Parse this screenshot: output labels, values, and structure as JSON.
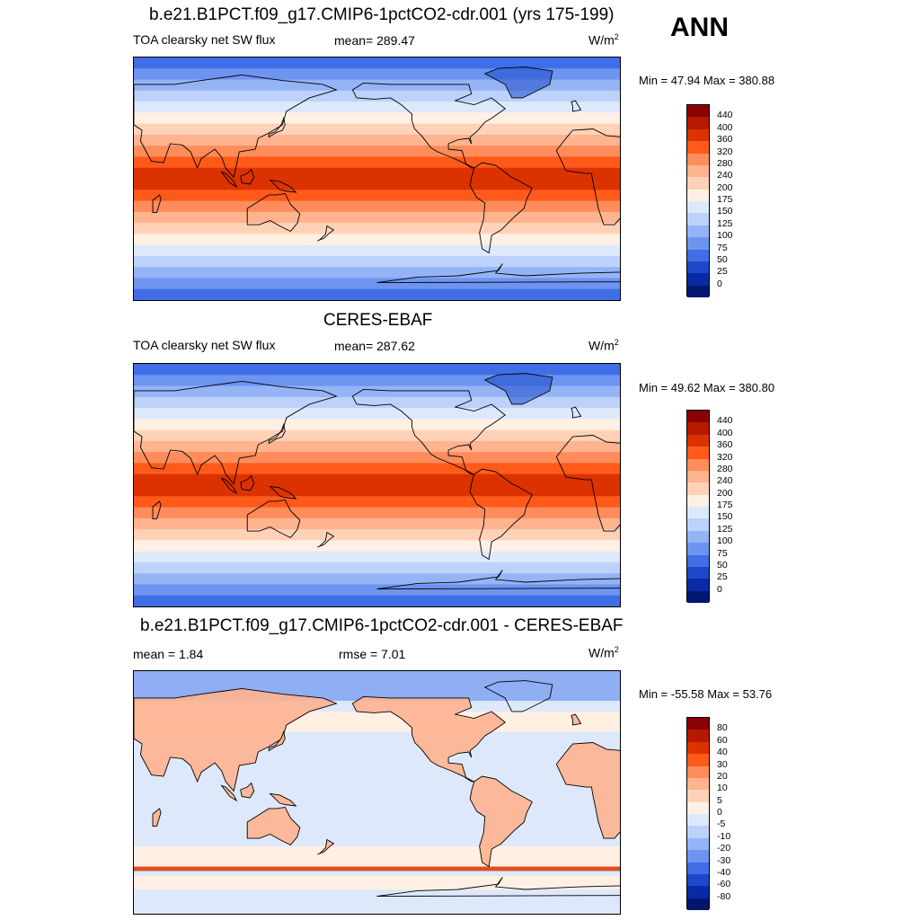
{
  "season": "ANN",
  "panels": [
    {
      "title": "b.e21.B1PCT.f09_g17.CMIP6-1pctCO2-cdr.001 (yrs 175-199)",
      "left_label": "TOA clearsky net SW flux",
      "center_label": "mean= 289.47",
      "units_base": "W/m",
      "units_exp": "2",
      "minmax": "Min =  47.94 Max = 380.88",
      "colorbar": {
        "labels": [
          "440",
          "400",
          "360",
          "320",
          "280",
          "240",
          "200",
          "175",
          "150",
          "125",
          "100",
          "75",
          "50",
          "25",
          "0"
        ],
        "colors": [
          "#8b0000",
          "#b51a00",
          "#dc3200",
          "#ff5a1a",
          "#ff8c5a",
          "#ffb38f",
          "#ffd2b8",
          "#fff0e3",
          "#dde9fb",
          "#bdd2fa",
          "#94b4f6",
          "#6d94f0",
          "#3f6ee6",
          "#1c48c9",
          "#0a2aa3",
          "#001670"
        ]
      },
      "map": {
        "type": "model",
        "band_colors": [
          "#3f6ee6",
          "#6d94f0",
          "#94b4f6",
          "#bdd2fa",
          "#dde9fb",
          "#fff0e3",
          "#ffd2b8",
          "#ffb38f",
          "#ff8c5a",
          "#ff5a1a",
          "#dc3200",
          "#dc3200",
          "#ff5a1a",
          "#ff8c5a",
          "#ffb38f",
          "#ffd2b8",
          "#fff0e3",
          "#dde9fb",
          "#bdd2fa",
          "#94b4f6",
          "#6d94f0",
          "#3f6ee6"
        ]
      }
    },
    {
      "title": "CERES-EBAF",
      "left_label": "TOA clearsky net SW flux",
      "center_label": "mean= 287.62",
      "units_base": "W/m",
      "units_exp": "2",
      "minmax": "Min =  49.62 Max = 380.80",
      "colorbar": {
        "labels": [
          "440",
          "400",
          "360",
          "320",
          "280",
          "240",
          "200",
          "175",
          "150",
          "125",
          "100",
          "75",
          "50",
          "25",
          "0"
        ],
        "colors": [
          "#8b0000",
          "#b51a00",
          "#dc3200",
          "#ff5a1a",
          "#ff8c5a",
          "#ffb38f",
          "#ffd2b8",
          "#fff0e3",
          "#dde9fb",
          "#bdd2fa",
          "#94b4f6",
          "#6d94f0",
          "#3f6ee6",
          "#1c48c9",
          "#0a2aa3",
          "#001670"
        ]
      },
      "map": {
        "type": "obs",
        "band_colors": [
          "#3f6ee6",
          "#6d94f0",
          "#94b4f6",
          "#bdd2fa",
          "#dde9fb",
          "#fff0e3",
          "#ffd2b8",
          "#ffb38f",
          "#ff8c5a",
          "#ff5a1a",
          "#dc3200",
          "#dc3200",
          "#ff5a1a",
          "#ff8c5a",
          "#ffb38f",
          "#ffd2b8",
          "#fff0e3",
          "#dde9fb",
          "#bdd2fa",
          "#94b4f6",
          "#6d94f0",
          "#3f6ee6"
        ]
      }
    },
    {
      "title": "b.e21.B1PCT.f09_g17.CMIP6-1pctCO2-cdr.001 - CERES-EBAF",
      "left_label": "mean =   1.84",
      "center_label": "rmse =   7.01",
      "units_base": "W/m",
      "units_exp": "2",
      "minmax": "Min = -55.58 Max =  53.76",
      "colorbar": {
        "labels": [
          "80",
          "60",
          "40",
          "30",
          "20",
          "10",
          "5",
          "0",
          "-5",
          "-10",
          "-20",
          "-30",
          "-40",
          "-60",
          "-80"
        ],
        "colors": [
          "#8b0000",
          "#b51a00",
          "#dc3200",
          "#ff5a1a",
          "#ff8c5a",
          "#ffb38f",
          "#ffd2b8",
          "#fff0e3",
          "#dde9fb",
          "#bdd2fa",
          "#94b4f6",
          "#6d94f0",
          "#3f6ee6",
          "#1c48c9",
          "#0a2aa3",
          "#001670"
        ]
      },
      "map": {
        "type": "diff",
        "ocean_color": "#dde9fb",
        "land_color": "#ffb38f",
        "pos_color": "#fff0e3",
        "strong_pos": "#dc3200",
        "neg_color": "#6d94f0"
      }
    }
  ],
  "coastline_color": "#000000"
}
